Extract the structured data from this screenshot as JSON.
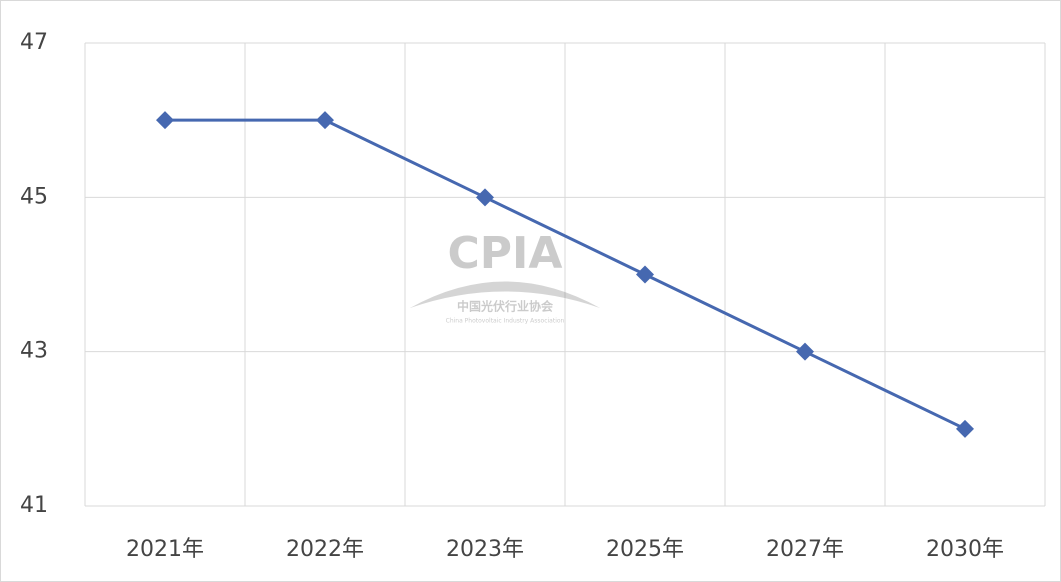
{
  "chart_data": {
    "type": "line",
    "categories": [
      "2021年",
      "2022年",
      "2023年",
      "2025年",
      "2027年",
      "2030年"
    ],
    "series": [
      {
        "name": "",
        "color": "#4668b0",
        "values": [
          46,
          46,
          45,
          44,
          43,
          42
        ]
      }
    ],
    "ylim": [
      41,
      47
    ],
    "yticks": [
      41,
      43,
      45,
      47
    ],
    "grid": true,
    "watermark": {
      "text": "CPIA",
      "subtitle": "中国光伏行业协会",
      "caption": "China Photovoltaic Industry Association"
    }
  }
}
